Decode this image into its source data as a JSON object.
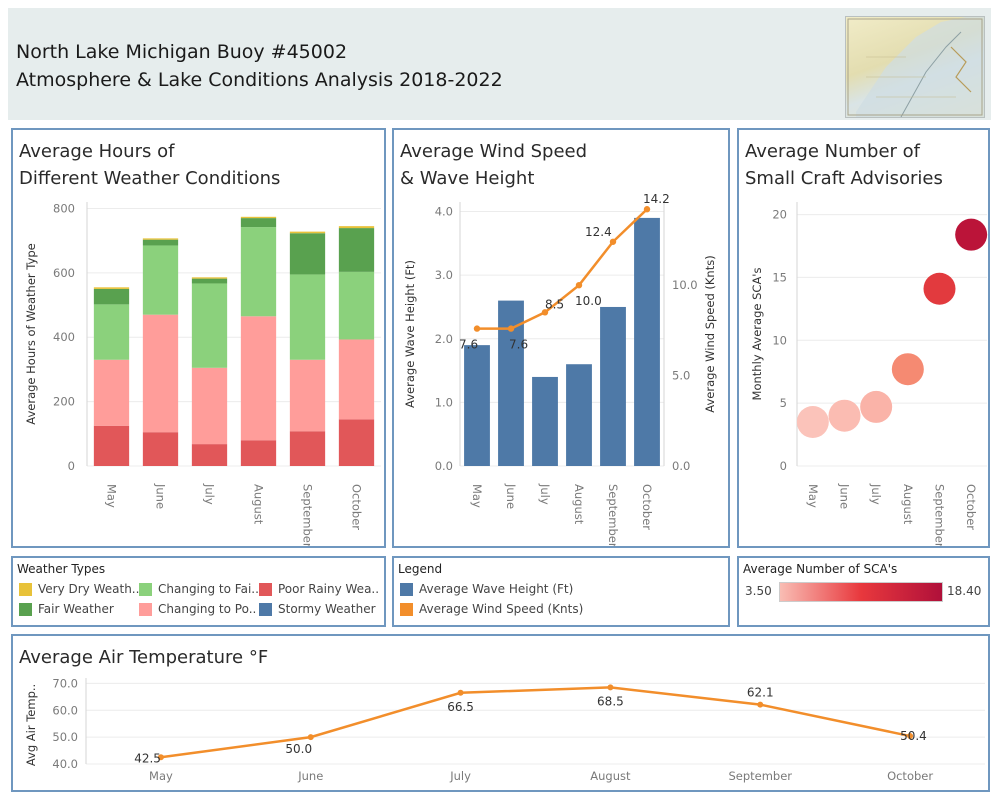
{
  "header": {
    "title_line1": "North Lake Michigan Buoy #45002",
    "title_line2": "Atmosphere & Lake Conditions Analysis 2018-2022"
  },
  "weather_panel": {
    "title_line1": "Average Hours of",
    "title_line2": "Different Weather Conditions"
  },
  "wind_panel": {
    "title_line1": "Average Wind Speed",
    "title_line2": "& Wave Height"
  },
  "sca_panel": {
    "title_line1": "Average Number of",
    "title_line2": "Small Craft Advisories"
  },
  "temp_panel": {
    "title": "Average Air Temperature °F"
  },
  "weather_legend": {
    "title": "Weather Types",
    "items": [
      {
        "label": "Very Dry Weath..",
        "color": "#e8c239"
      },
      {
        "label": "Changing to Fai..",
        "color": "#8bd17c"
      },
      {
        "label": "Poor Rainy Wea..",
        "color": "#e15759"
      },
      {
        "label": "Fair Weather",
        "color": "#59a14f"
      },
      {
        "label": "Changing to Po..",
        "color": "#ff9d9a"
      },
      {
        "label": "Stormy Weather",
        "color": "#4e79a7"
      }
    ]
  },
  "wind_legend": {
    "title": "Legend",
    "items": [
      {
        "label": "Average Wave Height (Ft)",
        "color": "#4e79a7"
      },
      {
        "label": "Average Wind Speed (Knts)",
        "color": "#f28e2b"
      }
    ]
  },
  "sca_legend": {
    "title": "Average Number of SCA's",
    "min_label": "3.50",
    "max_label": "18.40"
  },
  "chart_data": [
    {
      "type": "bar",
      "stacked": true,
      "ylabel": "Average Hours of Weather Type",
      "ylim": [
        0,
        820
      ],
      "yticks": [
        0,
        200,
        400,
        600,
        800
      ],
      "categories": [
        "May",
        "June",
        "July",
        "August",
        "September",
        "October"
      ],
      "series": [
        {
          "name": "Poor Rainy Wea..",
          "color": "#e15759",
          "values": [
            125,
            105,
            68,
            80,
            108,
            145
          ]
        },
        {
          "name": "Changing to Po..",
          "color": "#ff9d9a",
          "values": [
            205,
            365,
            237,
            385,
            222,
            248
          ]
        },
        {
          "name": "Changing to Fai..",
          "color": "#8bd17c",
          "values": [
            172,
            215,
            262,
            277,
            265,
            210
          ]
        },
        {
          "name": "Fair Weather",
          "color": "#59a14f",
          "values": [
            48,
            18,
            15,
            28,
            128,
            136
          ]
        },
        {
          "name": "Very Dry Weath..",
          "color": "#e8c239",
          "values": [
            5,
            4,
            4,
            4,
            5,
            6
          ]
        }
      ]
    },
    {
      "type": "bar+line",
      "categories": [
        "May",
        "June",
        "July",
        "August",
        "September",
        "October"
      ],
      "ylabel_left": "Average Wave Height (Ft)",
      "ylabel_right": "Average Wind Speed (Knts)",
      "ylim_left": [
        0,
        4.15
      ],
      "yticks_left": [
        "0.0",
        "1.0",
        "2.0",
        "3.0",
        "4.0"
      ],
      "ylim_right": [
        0,
        14.6
      ],
      "yticks_right": [
        "0.0",
        "5.0",
        "10.0"
      ],
      "bars": {
        "name": "Average Wave Height (Ft)",
        "color": "#4e79a7",
        "values": [
          1.9,
          2.6,
          1.4,
          1.6,
          2.5,
          3.9
        ]
      },
      "line": {
        "name": "Average Wind Speed (Knts)",
        "color": "#f28e2b",
        "values": [
          7.6,
          7.6,
          8.5,
          10.0,
          12.4,
          14.2
        ],
        "labels": [
          "7.6",
          "7.6",
          "8.5",
          "10.0",
          "12.4",
          "14.2"
        ]
      }
    },
    {
      "type": "scatter",
      "ylabel": "Monthly Average SCA's",
      "ylim": [
        0,
        21
      ],
      "yticks": [
        0,
        5,
        10,
        15,
        20
      ],
      "categories": [
        "May",
        "June",
        "July",
        "August",
        "September",
        "October"
      ],
      "values": [
        3.5,
        4.0,
        4.7,
        7.7,
        14.1,
        18.4
      ],
      "colors": [
        "#fbc3ba",
        "#fbbcb2",
        "#fab3a8",
        "#f58a72",
        "#e23a3e",
        "#bb1439"
      ]
    },
    {
      "type": "line",
      "ylabel": "Avg Air Temp..",
      "ylim": [
        40,
        72
      ],
      "yticks": [
        "40.0",
        "50.0",
        "60.0",
        "70.0"
      ],
      "categories": [
        "May",
        "June",
        "July",
        "August",
        "September",
        "October"
      ],
      "values": [
        42.5,
        50.0,
        66.5,
        68.5,
        62.1,
        50.4
      ],
      "labels": [
        "42.5",
        "50.0",
        "66.5",
        "68.5",
        "62.1",
        "50.4"
      ],
      "color": "#f28e2b"
    }
  ]
}
